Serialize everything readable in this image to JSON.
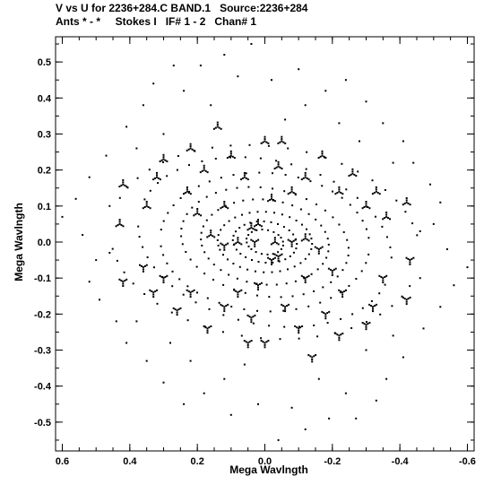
{
  "header": {
    "line1": "V vs U for 2236+284.C BAND.1   Source:2236+284",
    "line2": "Ants * - *     Stokes I   IF# 1 - 2   Chan# 1"
  },
  "chart_data": {
    "type": "scatter",
    "title": "V vs U for 2236+284.C BAND.1   Source:2236+284",
    "subtitle": "Ants * - *     Stokes I   IF# 1 - 2   Chan# 1",
    "xlabel": "Mega Wavlngth",
    "ylabel": "Mega Wavlngth",
    "xlim": [
      0.62,
      -0.62
    ],
    "ylim": [
      -0.58,
      0.57
    ],
    "xticks": [
      0.6,
      0.4,
      0.2,
      0.0,
      -0.2,
      -0.4,
      -0.6
    ],
    "xtick_labels": [
      "0.6",
      "0.4",
      "0.2",
      "0.0",
      "-0.2",
      "-0.4",
      "-0.6"
    ],
    "yticks": [
      0.5,
      0.4,
      0.3,
      0.2,
      0.1,
      0.0,
      -0.1,
      -0.2,
      -0.3,
      -0.4,
      -0.5
    ],
    "ytick_labels": [
      "0.5",
      "0.4",
      "0.3",
      "0.2",
      "0.1",
      "0.0",
      "-0.1",
      "-0.2",
      "-0.3",
      "-0.4",
      "-0.5"
    ],
    "grid": false,
    "point_color": "#000000",
    "symmetry": "point-symmetric about (0, 0): every (u, v) also appears as (-u, -v)",
    "ellipse_arcs": [
      {
        "r": 0.055,
        "ratio": 0.62,
        "rot": 0.15,
        "a0": -0.6,
        "a1": 2.3,
        "n": 10
      },
      {
        "r": 0.095,
        "ratio": 0.6,
        "rot": 0.1,
        "a0": -0.3,
        "a1": 2.6,
        "n": 14
      },
      {
        "r": 0.14,
        "ratio": 0.6,
        "rot": 0.05,
        "a0": -0.2,
        "a1": 2.8,
        "n": 18
      },
      {
        "r": 0.19,
        "ratio": 0.62,
        "rot": 0.1,
        "a0": -0.1,
        "a1": 2.9,
        "n": 20
      },
      {
        "r": 0.25,
        "ratio": 0.6,
        "rot": 0.15,
        "a0": 0.0,
        "a1": 3.0,
        "n": 22
      },
      {
        "r": 0.31,
        "ratio": 0.62,
        "rot": 0.05,
        "a0": 0.1,
        "a1": 3.0,
        "n": 24
      },
      {
        "r": 0.38,
        "ratio": 0.6,
        "rot": 0.2,
        "a0": 0.2,
        "a1": 3.0,
        "n": 24
      },
      {
        "r": 0.46,
        "ratio": 0.58,
        "rot": 0.1,
        "a0": 0.3,
        "a1": 2.9,
        "n": 22
      }
    ],
    "tripod_clusters": [
      [
        0.02,
        0.05
      ],
      [
        -0.03,
        0.0
      ],
      [
        0.08,
        0.0
      ],
      [
        -0.12,
        0.01
      ],
      [
        0.04,
        0.04
      ],
      [
        -0.02,
        0.12
      ],
      [
        0.06,
        0.18
      ],
      [
        -0.04,
        0.21
      ],
      [
        0.1,
        0.24
      ],
      [
        0.0,
        0.28
      ],
      [
        0.18,
        0.2
      ],
      [
        0.22,
        0.26
      ],
      [
        0.23,
        0.14
      ],
      [
        0.32,
        0.18
      ],
      [
        0.35,
        0.1
      ],
      [
        0.43,
        0.05
      ],
      [
        -0.12,
        0.18
      ],
      [
        -0.22,
        0.14
      ],
      [
        -0.3,
        0.1
      ],
      [
        -0.26,
        0.19
      ],
      [
        -0.36,
        0.07
      ],
      [
        -0.17,
        0.24
      ],
      [
        0.12,
        0.1
      ],
      [
        0.16,
        0.02
      ],
      [
        -0.05,
        0.28
      ],
      [
        0.14,
        0.32
      ],
      [
        0.3,
        0.23
      ],
      [
        -0.33,
        0.14
      ],
      [
        0.42,
        0.16
      ],
      [
        -0.42,
        0.11
      ],
      [
        0.2,
        0.08
      ],
      [
        -0.08,
        0.14
      ]
    ],
    "scattered_points": [
      [
        0.04,
        0.55
      ],
      [
        0.12,
        0.52
      ],
      [
        0.19,
        0.49
      ],
      [
        0.27,
        0.49
      ],
      [
        0.33,
        0.44
      ],
      [
        0.08,
        0.46
      ],
      [
        -0.02,
        0.45
      ],
      [
        -0.1,
        0.48
      ],
      [
        -0.18,
        0.42
      ],
      [
        -0.24,
        0.45
      ],
      [
        -0.3,
        0.39
      ],
      [
        -0.35,
        0.33
      ],
      [
        -0.41,
        0.28
      ],
      [
        -0.44,
        0.22
      ],
      [
        -0.49,
        0.16
      ],
      [
        -0.52,
        0.11
      ],
      [
        0.36,
        0.38
      ],
      [
        0.41,
        0.32
      ],
      [
        0.47,
        0.24
      ],
      [
        0.52,
        0.18
      ],
      [
        0.56,
        0.12
      ],
      [
        0.6,
        0.07
      ],
      [
        0.24,
        0.42
      ],
      [
        0.16,
        0.38
      ],
      [
        -0.12,
        0.38
      ],
      [
        -0.06,
        0.34
      ],
      [
        0.3,
        0.3
      ],
      [
        -0.22,
        0.33
      ],
      [
        -0.28,
        0.28
      ],
      [
        0.46,
        0.1
      ],
      [
        -0.5,
        0.05
      ],
      [
        -0.46,
        0.03
      ],
      [
        0.54,
        0.02
      ],
      [
        0.38,
        0.26
      ],
      [
        -0.38,
        0.22
      ]
    ]
  }
}
